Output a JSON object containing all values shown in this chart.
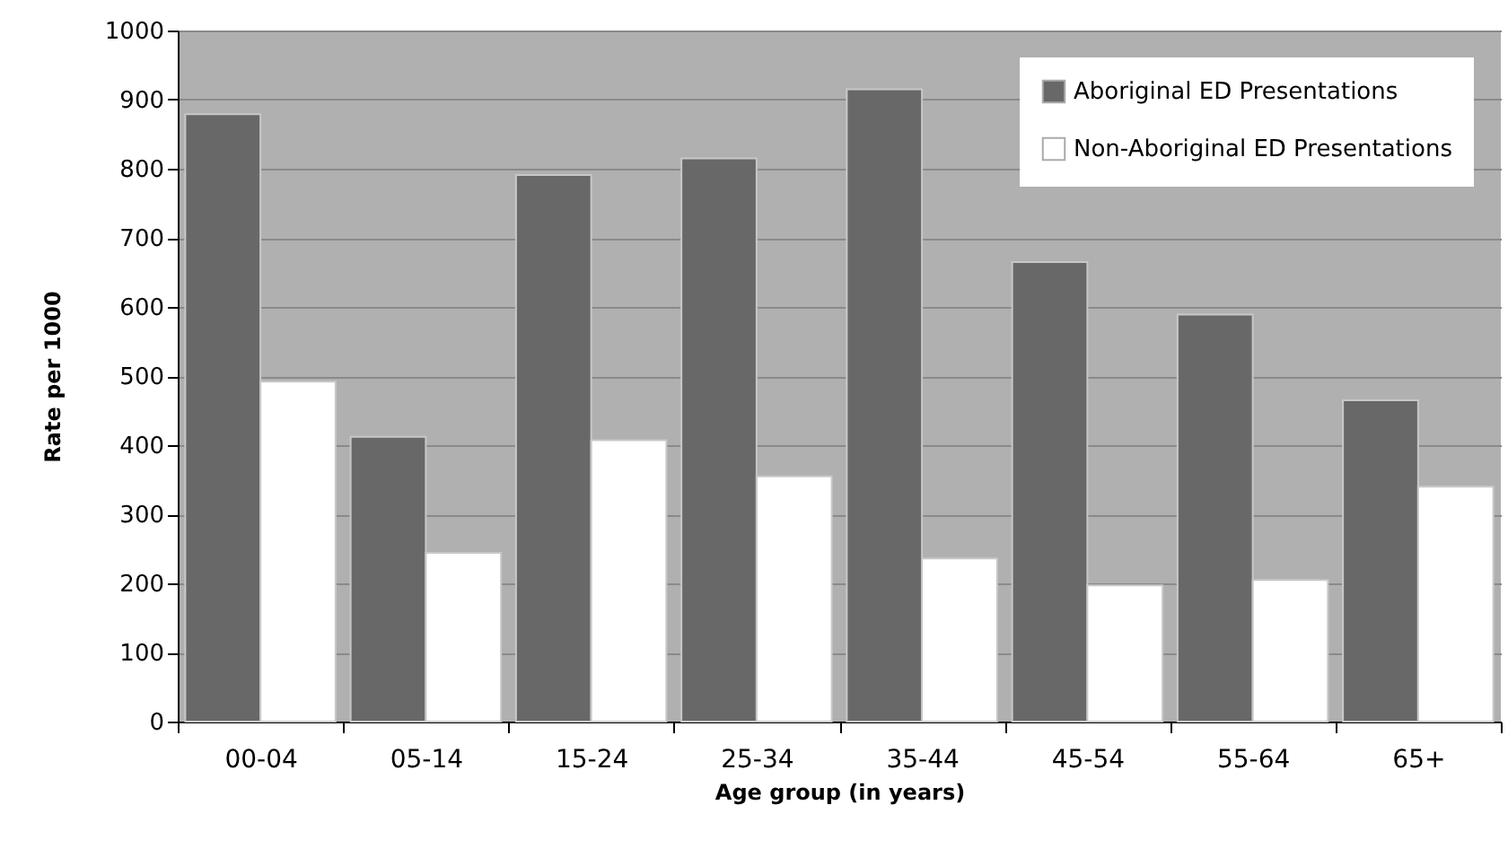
{
  "chart_data": {
    "type": "bar",
    "xlabel": "Age group (in years)",
    "ylabel": "Rate per 1000",
    "categories": [
      "00-04",
      "05-14",
      "15-24",
      "25-34",
      "35-44",
      "45-54",
      "55-64",
      "65+"
    ],
    "series": [
      {
        "name": "Aboriginal ED Presentations",
        "color": "#686868",
        "values": [
          879,
          412,
          791,
          815,
          915,
          665,
          589,
          465
        ]
      },
      {
        "name": "Non-Aboriginal ED Presentations",
        "color": "#ffffff",
        "values": [
          492,
          244,
          407,
          355,
          236,
          197,
          205,
          340
        ]
      }
    ],
    "ylim": [
      0,
      1000
    ],
    "yticks": [
      0,
      100,
      200,
      300,
      400,
      500,
      600,
      700,
      800,
      900,
      1000
    ],
    "grid": "y",
    "legend": "top right"
  }
}
